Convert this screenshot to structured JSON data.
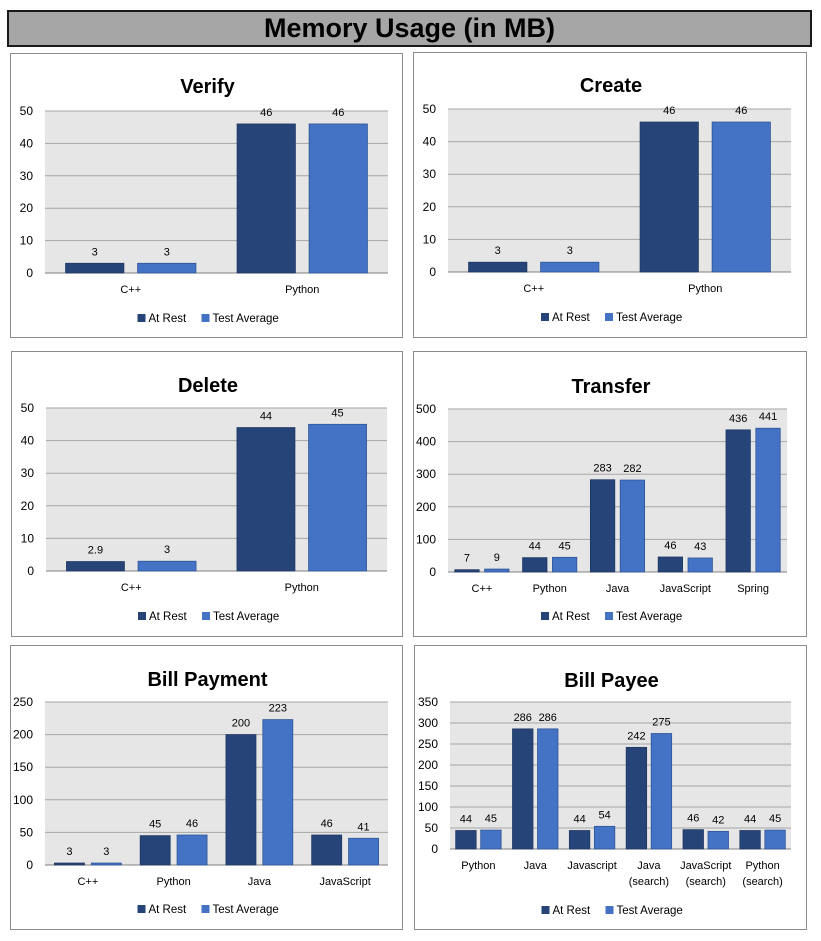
{
  "page_title": "Memory Usage (in MB)",
  "colors": {
    "at_rest": "#264478",
    "test_average": "#4472c4",
    "plot_bg": "#e6e6e6"
  },
  "chart_data": [
    {
      "type": "bar",
      "title": "Verify",
      "categories": [
        "C++",
        "Python"
      ],
      "series": [
        {
          "name": "At Rest",
          "values": [
            3,
            46
          ]
        },
        {
          "name": "Test Average",
          "values": [
            3,
            46
          ]
        }
      ],
      "data_labels": [
        [
          "3",
          "46"
        ],
        [
          "3",
          "46"
        ]
      ],
      "ylim": [
        0,
        50
      ],
      "yticks": [
        0,
        10,
        20,
        30,
        40,
        50
      ],
      "grid": true,
      "legend": "bottom"
    },
    {
      "type": "bar",
      "title": "Create",
      "categories": [
        "C++",
        "Python"
      ],
      "series": [
        {
          "name": "At Rest",
          "values": [
            3,
            46
          ]
        },
        {
          "name": "Test Average",
          "values": [
            3,
            46
          ]
        }
      ],
      "data_labels": [
        [
          "3",
          "46"
        ],
        [
          "3",
          "46"
        ]
      ],
      "ylim": [
        0,
        50
      ],
      "yticks": [
        0,
        10,
        20,
        30,
        40,
        50
      ],
      "grid": true,
      "legend": "bottom"
    },
    {
      "type": "bar",
      "title": "Delete",
      "categories": [
        "C++",
        "Python"
      ],
      "series": [
        {
          "name": "At Rest",
          "values": [
            2.9,
            44
          ]
        },
        {
          "name": "Test Average",
          "values": [
            3,
            45
          ]
        }
      ],
      "data_labels": [
        [
          "2.9",
          "44"
        ],
        [
          "3",
          "45"
        ]
      ],
      "ylim": [
        0,
        50
      ],
      "yticks": [
        0,
        10,
        20,
        30,
        40,
        50
      ],
      "grid": true,
      "legend": "bottom"
    },
    {
      "type": "bar",
      "title": "Transfer",
      "categories": [
        "C++",
        "Python",
        "Java",
        "JavaScript",
        "Spring"
      ],
      "series": [
        {
          "name": "At Rest",
          "values": [
            7,
            44,
            283,
            46,
            436
          ]
        },
        {
          "name": "Test Average",
          "values": [
            9,
            45,
            282,
            43,
            441
          ]
        }
      ],
      "data_labels": [
        [
          "7",
          "44",
          "283",
          "46",
          "436"
        ],
        [
          "9",
          "45",
          "282",
          "43",
          "441"
        ]
      ],
      "ylim": [
        0,
        500
      ],
      "yticks": [
        0,
        100,
        200,
        300,
        400,
        500
      ],
      "grid": true,
      "legend": "bottom"
    },
    {
      "type": "bar",
      "title": "Bill Payment",
      "categories": [
        "C++",
        "Python",
        "Java",
        "JavaScript"
      ],
      "series": [
        {
          "name": "At Rest",
          "values": [
            3,
            45,
            200,
            46
          ]
        },
        {
          "name": "Test Average",
          "values": [
            3,
            46,
            223,
            41
          ]
        }
      ],
      "data_labels": [
        [
          "3",
          "45",
          "200",
          "46"
        ],
        [
          "3",
          "46",
          "223",
          "41"
        ]
      ],
      "ylim": [
        0,
        250
      ],
      "yticks": [
        0,
        50,
        100,
        150,
        200,
        250
      ],
      "grid": true,
      "legend": "bottom"
    },
    {
      "type": "bar",
      "title": "Bill Payee",
      "categories": [
        "Python",
        "Java",
        "Javascript",
        "Java (search)",
        "JavaScript (search)",
        "Python (search)"
      ],
      "category_lines": [
        [
          "Python"
        ],
        [
          "Java"
        ],
        [
          "Javascript"
        ],
        [
          "Java",
          "(search)"
        ],
        [
          "JavaScript",
          "(search)"
        ],
        [
          "Python",
          "(search)"
        ]
      ],
      "series": [
        {
          "name": "At Rest",
          "values": [
            44,
            286,
            44,
            242,
            46,
            44
          ]
        },
        {
          "name": "Test Average",
          "values": [
            45,
            286,
            54,
            275,
            42,
            45
          ]
        }
      ],
      "data_labels": [
        [
          "44",
          "286",
          "44",
          "242",
          "46",
          "44"
        ],
        [
          "45",
          "286",
          "54",
          "275",
          "42",
          "45"
        ]
      ],
      "ylim": [
        0,
        350
      ],
      "yticks": [
        0,
        50,
        100,
        150,
        200,
        250,
        300,
        350
      ],
      "grid": true,
      "legend": "bottom"
    }
  ]
}
